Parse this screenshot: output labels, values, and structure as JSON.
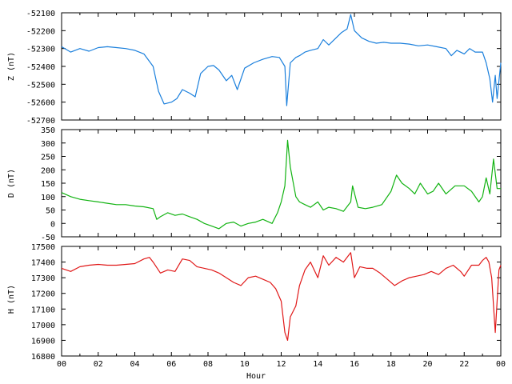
{
  "chart_data": [
    {
      "type": "line",
      "ylabel": "Z (nT)",
      "ylim": [
        -52700,
        -52100
      ],
      "yticks": [
        "-52100",
        "-52200",
        "-52300",
        "-52400",
        "-52500",
        "-52600",
        "-52700"
      ],
      "xlim": [
        0,
        24
      ],
      "grid": false,
      "series": [
        {
          "color": "#1a7fdc",
          "x": [
            0,
            0.5,
            1,
            1.5,
            2,
            2.5,
            3,
            3.5,
            4,
            4.5,
            5,
            5.3,
            5.6,
            6,
            6.3,
            6.6,
            7,
            7.3,
            7.6,
            8,
            8.3,
            8.6,
            9,
            9.3,
            9.6,
            10,
            10.5,
            11,
            11.5,
            11.9,
            12.2,
            12.3,
            12.5,
            12.8,
            13,
            13.3,
            13.6,
            14,
            14.3,
            14.6,
            15,
            15.3,
            15.6,
            15.8,
            16,
            16.4,
            16.8,
            17.2,
            17.6,
            18,
            18.5,
            19,
            19.5,
            20,
            20.5,
            21,
            21.3,
            21.6,
            22,
            22.3,
            22.6,
            23,
            23.2,
            23.4,
            23.55,
            23.7,
            23.8,
            24
          ],
          "y": [
            -52290,
            -52320,
            -52300,
            -52315,
            -52295,
            -52290,
            -52295,
            -52300,
            -52310,
            -52330,
            -52400,
            -52540,
            -52610,
            -52600,
            -52580,
            -52530,
            -52550,
            -52570,
            -52440,
            -52400,
            -52395,
            -52420,
            -52480,
            -52450,
            -52530,
            -52410,
            -52380,
            -52360,
            -52345,
            -52350,
            -52400,
            -52620,
            -52380,
            -52350,
            -52340,
            -52320,
            -52310,
            -52300,
            -52250,
            -52280,
            -52240,
            -52210,
            -52190,
            -52110,
            -52200,
            -52240,
            -52260,
            -52270,
            -52265,
            -52270,
            -52270,
            -52275,
            -52285,
            -52280,
            -52290,
            -52300,
            -52340,
            -52310,
            -52330,
            -52300,
            -52320,
            -52320,
            -52380,
            -52470,
            -52600,
            -52450,
            -52580,
            -52380
          ]
        }
      ]
    },
    {
      "type": "line",
      "ylabel": "D (nT)",
      "ylim": [
        -50,
        350
      ],
      "yticks": [
        "350",
        "300",
        "250",
        "200",
        "150",
        "100",
        "50",
        "0",
        "-50"
      ],
      "xlim": [
        0,
        24
      ],
      "grid": false,
      "series": [
        {
          "color": "#12b312",
          "x": [
            0,
            0.5,
            1,
            1.5,
            2,
            2.5,
            3,
            3.5,
            4,
            4.5,
            5,
            5.2,
            5.4,
            5.8,
            6.2,
            6.6,
            7,
            7.4,
            7.8,
            8.2,
            8.6,
            9,
            9.4,
            9.8,
            10.2,
            10.6,
            11,
            11.5,
            11.8,
            12,
            12.2,
            12.35,
            12.5,
            12.8,
            13,
            13.3,
            13.6,
            14,
            14.3,
            14.6,
            15,
            15.4,
            15.8,
            15.9,
            16.2,
            16.6,
            17,
            17.5,
            18,
            18.3,
            18.6,
            19,
            19.3,
            19.6,
            20,
            20.3,
            20.6,
            21,
            21.5,
            22,
            22.4,
            22.8,
            23,
            23.2,
            23.4,
            23.6,
            23.8,
            24
          ],
          "y": [
            115,
            100,
            90,
            85,
            80,
            75,
            70,
            70,
            65,
            62,
            55,
            15,
            25,
            40,
            30,
            35,
            25,
            15,
            0,
            -10,
            -20,
            0,
            5,
            -10,
            0,
            5,
            15,
            0,
            40,
            80,
            140,
            310,
            210,
            100,
            80,
            70,
            60,
            80,
            50,
            60,
            55,
            45,
            80,
            140,
            60,
            55,
            60,
            70,
            120,
            180,
            150,
            130,
            110,
            150,
            110,
            120,
            150,
            110,
            140,
            140,
            120,
            80,
            100,
            170,
            110,
            240,
            130,
            130
          ]
        }
      ]
    },
    {
      "type": "line",
      "xlabel": "Hour",
      "ylabel": "H (nT)",
      "ylim": [
        16800,
        17500
      ],
      "yticks": [
        "17500",
        "17400",
        "17300",
        "17200",
        "17100",
        "17000",
        "16900",
        "16800"
      ],
      "xlim": [
        0,
        24
      ],
      "xticks": [
        "00",
        "02",
        "04",
        "06",
        "08",
        "10",
        "12",
        "14",
        "16",
        "18",
        "20",
        "22",
        "00"
      ],
      "grid": false,
      "series": [
        {
          "color": "#e01818",
          "x": [
            0,
            0.5,
            1,
            1.5,
            2,
            2.5,
            3,
            3.5,
            4,
            4.5,
            4.8,
            5,
            5.4,
            5.8,
            6.2,
            6.6,
            7,
            7.4,
            7.8,
            8.2,
            8.6,
            9,
            9.4,
            9.8,
            10.2,
            10.6,
            11,
            11.4,
            11.7,
            12,
            12.2,
            12.35,
            12.5,
            12.8,
            13,
            13.3,
            13.6,
            14,
            14.3,
            14.6,
            15,
            15.4,
            15.8,
            16,
            16.3,
            16.7,
            17,
            17.4,
            17.8,
            18.2,
            18.6,
            19,
            19.4,
            19.8,
            20.2,
            20.6,
            21,
            21.4,
            21.8,
            22,
            22.4,
            22.8,
            23,
            23.2,
            23.35,
            23.5,
            23.7,
            23.9,
            24
          ],
          "y": [
            17360,
            17340,
            17370,
            17380,
            17385,
            17380,
            17380,
            17385,
            17390,
            17420,
            17430,
            17400,
            17330,
            17350,
            17340,
            17420,
            17410,
            17370,
            17360,
            17350,
            17330,
            17300,
            17270,
            17250,
            17300,
            17310,
            17290,
            17270,
            17230,
            17150,
            16950,
            16900,
            17050,
            17120,
            17250,
            17350,
            17400,
            17300,
            17440,
            17380,
            17430,
            17400,
            17460,
            17300,
            17370,
            17360,
            17360,
            17330,
            17290,
            17250,
            17280,
            17300,
            17310,
            17320,
            17340,
            17320,
            17360,
            17380,
            17340,
            17310,
            17380,
            17380,
            17410,
            17430,
            17400,
            17300,
            16950,
            17350,
            17380
          ]
        }
      ]
    }
  ]
}
